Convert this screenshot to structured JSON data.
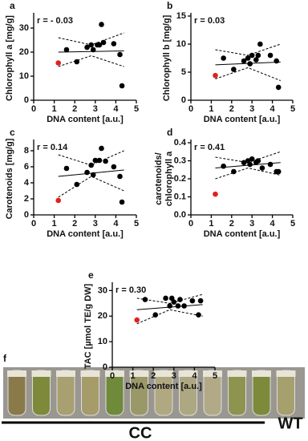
{
  "chart_data": [
    {
      "type": "scatter",
      "panel": "a",
      "annotation": "r = - 0.03",
      "xlabel": "DNA content [a.u.]",
      "ylabel": "Chlorophyll a [mg/g]",
      "xlim": [
        0,
        5
      ],
      "xticks": [
        0,
        1,
        2,
        3,
        4,
        5
      ],
      "ylim": [
        0,
        35
      ],
      "yticks": [
        0,
        10,
        20,
        30
      ],
      "series": [
        {
          "color": "#000000",
          "x": [
            1.6,
            2.1,
            2.6,
            2.8,
            2.9,
            3.1,
            3.2,
            3.3,
            3.4,
            3.9,
            4.2,
            4.3
          ],
          "values": [
            21,
            16,
            22,
            23,
            21,
            23,
            23,
            31.5,
            24,
            23.5,
            19,
            6
          ]
        },
        {
          "color": "#e02020",
          "x": [
            1.2
          ],
          "values": [
            15.5
          ]
        }
      ],
      "fit": {
        "x": [
          1.2,
          4.4
        ],
        "values": [
          20,
          20.5
        ]
      },
      "ci_upper": {
        "x": [
          1.2,
          2.8,
          4.4
        ],
        "values": [
          26,
          23,
          28
        ]
      },
      "ci_lower": {
        "x": [
          1.2,
          2.8,
          4.4
        ],
        "values": [
          14,
          18.5,
          14
        ]
      }
    },
    {
      "type": "scatter",
      "panel": "b",
      "annotation": "r = 0.03",
      "xlabel": "DNA content [a.u.]",
      "ylabel": "Chlorophyll b [mg/g]",
      "xlim": [
        0,
        5
      ],
      "xticks": [
        0,
        1,
        2,
        3,
        4,
        5
      ],
      "ylim": [
        0,
        15
      ],
      "yticks": [
        0,
        5,
        10,
        15
      ],
      "series": [
        {
          "color": "#000000",
          "x": [
            1.6,
            2.1,
            2.6,
            2.8,
            2.9,
            3.0,
            3.2,
            3.3,
            3.4,
            3.9,
            4.2,
            4.3
          ],
          "values": [
            7.5,
            5.5,
            7,
            7.5,
            6.5,
            8,
            7.2,
            8,
            10,
            8,
            7,
            2.3
          ]
        },
        {
          "color": "#e02020",
          "x": [
            1.2
          ],
          "values": [
            4.4
          ]
        }
      ],
      "fit": {
        "x": [
          1.2,
          4.4
        ],
        "values": [
          6.3,
          6.8
        ]
      },
      "ci_upper": {
        "x": [
          1.2,
          2.8,
          4.4
        ],
        "values": [
          9,
          8,
          10
        ]
      },
      "ci_lower": {
        "x": [
          1.2,
          2.8,
          4.4
        ],
        "values": [
          3.8,
          5.8,
          3.5
        ]
      }
    },
    {
      "type": "scatter",
      "panel": "c",
      "annotation": "r = 0.14",
      "xlabel": "DNA content [a.u.]",
      "ylabel": "Carotenoids [mg/g]",
      "xlim": [
        0,
        5
      ],
      "xticks": [
        0,
        1,
        2,
        3,
        4,
        5
      ],
      "ylim": [
        0,
        9
      ],
      "yticks": [
        0,
        2,
        4,
        6,
        8
      ],
      "series": [
        {
          "color": "#000000",
          "x": [
            1.6,
            2.1,
            2.6,
            2.8,
            2.9,
            3.0,
            3.2,
            3.3,
            3.5,
            3.9,
            4.2,
            4.3
          ],
          "values": [
            5.8,
            3.8,
            5.3,
            6.2,
            5,
            6.8,
            6.8,
            8.3,
            6.7,
            6,
            4.8,
            1.6
          ]
        },
        {
          "color": "#e02020",
          "x": [
            1.2
          ],
          "values": [
            1.8
          ]
        }
      ],
      "fit": {
        "x": [
          1.2,
          4.4
        ],
        "values": [
          4.8,
          5.6
        ]
      },
      "ci_upper": {
        "x": [
          1.2,
          2.8,
          4.4
        ],
        "values": [
          7.5,
          6.2,
          8
        ]
      },
      "ci_lower": {
        "x": [
          1.2,
          2.8,
          4.4
        ],
        "values": [
          2.2,
          4.8,
          3
        ]
      }
    },
    {
      "type": "scatter",
      "panel": "d",
      "annotation": "r = 0.41",
      "xlabel": "DNA content [a.u.]",
      "ylabel": [
        "carotenoids/",
        "chlorophyll a"
      ],
      "xlim": [
        0,
        5
      ],
      "xticks": [
        0,
        1,
        2,
        3,
        4,
        5
      ],
      "ylim": [
        0,
        0.4
      ],
      "yticks": [
        {
          "value": 0,
          "label": "0.0"
        },
        0.1,
        0.2,
        0.3,
        0.4
      ],
      "series": [
        {
          "color": "#000000",
          "x": [
            1.6,
            2.1,
            2.6,
            2.8,
            2.9,
            3.0,
            3.2,
            3.3,
            3.5,
            3.9,
            4.2,
            4.3
          ],
          "values": [
            0.27,
            0.24,
            0.29,
            0.3,
            0.28,
            0.31,
            0.29,
            0.3,
            0.26,
            0.28,
            0.24,
            0.24
          ]
        },
        {
          "color": "#e02020",
          "x": [
            1.2
          ],
          "values": [
            0.115
          ]
        }
      ],
      "fit": {
        "x": [
          1.2,
          4.4
        ],
        "values": [
          0.26,
          0.29
        ]
      },
      "ci_upper": {
        "x": [
          1.2,
          2.8,
          4.4
        ],
        "values": [
          0.32,
          0.29,
          0.35
        ]
      },
      "ci_lower": {
        "x": [
          1.2,
          2.8,
          4.4
        ],
        "values": [
          0.2,
          0.26,
          0.22
        ]
      }
    },
    {
      "type": "scatter",
      "panel": "e",
      "annotation": "r = 0.30",
      "xlabel": "DNA content [a.u.]",
      "ylabel": "TAC [µmol TE/g DW]",
      "xlim": [
        0,
        5
      ],
      "xticks": [
        0,
        1,
        2,
        3,
        4,
        5
      ],
      "ylim": [
        0,
        32
      ],
      "yticks": [
        0,
        10,
        20,
        30
      ],
      "series": [
        {
          "color": "#000000",
          "x": [
            1.6,
            2.1,
            2.6,
            2.8,
            2.9,
            3.0,
            3.2,
            3.3,
            3.5,
            3.9,
            4.2,
            4.3
          ],
          "values": [
            26.5,
            20.5,
            27,
            24,
            27,
            25.5,
            24,
            26.5,
            24,
            26,
            20.5,
            26
          ]
        },
        {
          "color": "#e02020",
          "x": [
            1.2
          ],
          "values": [
            18.5
          ]
        }
      ],
      "fit": {
        "x": [
          1.2,
          4.4
        ],
        "values": [
          22.5,
          24.5
        ]
      },
      "ci_upper": {
        "x": [
          1.2,
          2.8,
          4.4
        ],
        "values": [
          27,
          25,
          28.5
        ]
      },
      "ci_lower": {
        "x": [
          1.2,
          2.8,
          4.4
        ],
        "values": [
          17,
          22.5,
          20
        ]
      }
    }
  ],
  "photo": {
    "panel": "f",
    "groups": [
      "CC",
      "WT"
    ]
  }
}
